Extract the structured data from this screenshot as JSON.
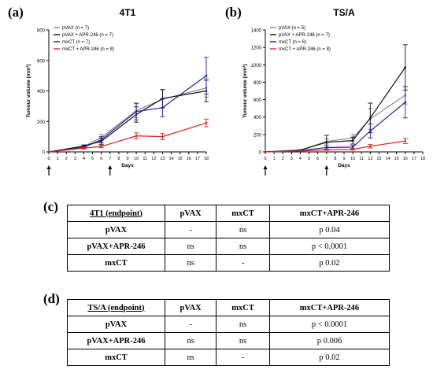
{
  "panels": {
    "a": "(a)",
    "b": "(b)",
    "c": "(c)",
    "d": "(d)"
  },
  "chart_data": [
    {
      "type": "line",
      "title": "4T1",
      "xlabel": "Days",
      "ylabel": "Tumour volume (mm³)",
      "xlim": [
        0,
        18
      ],
      "ylim": [
        0,
        800
      ],
      "xticks": [
        0,
        1,
        2,
        3,
        4,
        5,
        6,
        7,
        8,
        9,
        10,
        11,
        12,
        13,
        14,
        15,
        16,
        17,
        18
      ],
      "yticks": [
        0,
        200,
        400,
        600,
        800
      ],
      "arrows_at_days": [
        0,
        7
      ],
      "legend_position": "top-left",
      "series": [
        {
          "name": "pVAX (n = 7)",
          "color": "#888888",
          "x": [
            0,
            4,
            6,
            10,
            13,
            18
          ],
          "y": [
            0,
            35,
            95,
            270,
            345,
            420
          ],
          "err": [
            0,
            8,
            20,
            45,
            55,
            60
          ]
        },
        {
          "name": "pVAX + APR-246 (n = 7)",
          "color": "#111111",
          "x": [
            0,
            4,
            6,
            10,
            13,
            18
          ],
          "y": [
            0,
            38,
            70,
            245,
            350,
            400
          ],
          "err": [
            0,
            8,
            20,
            50,
            60,
            70
          ]
        },
        {
          "name": "mxCT (n = 7)",
          "color": "#1f1fa0",
          "x": [
            0,
            4,
            6,
            10,
            13,
            18
          ],
          "y": [
            0,
            30,
            80,
            265,
            290,
            500
          ],
          "err": [
            0,
            8,
            20,
            55,
            60,
            120
          ]
        },
        {
          "name": "mxCT + APR-246 (n = 8)",
          "color": "#e02020",
          "x": [
            0,
            4,
            6,
            10,
            13,
            18
          ],
          "y": [
            0,
            25,
            35,
            105,
            100,
            190
          ],
          "err": [
            0,
            6,
            8,
            20,
            20,
            25
          ]
        }
      ]
    },
    {
      "type": "line",
      "title": "TS/A",
      "xlabel": "Days",
      "ylabel": "Tumour volume (mm³)",
      "xlim": [
        0,
        18
      ],
      "ylim": [
        0,
        1400
      ],
      "xticks": [
        0,
        1,
        2,
        3,
        4,
        5,
        6,
        7,
        8,
        9,
        10,
        11,
        12,
        13,
        14,
        15,
        16,
        17,
        18
      ],
      "yticks": [
        0,
        200,
        400,
        600,
        800,
        1000,
        1200,
        1400
      ],
      "arrows_at_days": [
        0,
        7
      ],
      "legend_position": "top-left",
      "series": [
        {
          "name": "pVAX (n = 5)",
          "color": "#888888",
          "x": [
            0,
            4,
            7,
            10,
            12,
            16
          ],
          "y": [
            0,
            20,
            120,
            160,
            380,
            650
          ],
          "err": [
            0,
            5,
            30,
            40,
            120,
            100
          ]
        },
        {
          "name": "pVAX + APR-246 (n = 7)",
          "color": "#111111",
          "x": [
            0,
            4,
            7,
            10,
            12,
            16
          ],
          "y": [
            0,
            20,
            110,
            130,
            390,
            970
          ],
          "err": [
            0,
            5,
            80,
            40,
            170,
            260
          ]
        },
        {
          "name": "mxCT (n = 6)",
          "color": "#1f1fa0",
          "x": [
            0,
            4,
            7,
            10,
            12,
            16
          ],
          "y": [
            0,
            15,
            50,
            55,
            240,
            570
          ],
          "err": [
            0,
            5,
            20,
            20,
            80,
            180
          ]
        },
        {
          "name": "mxCT + APR-246 (n = 8)",
          "color": "#e02020",
          "x": [
            0,
            4,
            7,
            10,
            12,
            16
          ],
          "y": [
            0,
            10,
            25,
            30,
            65,
            125
          ],
          "err": [
            0,
            3,
            8,
            10,
            20,
            30
          ]
        }
      ]
    }
  ],
  "tables": [
    {
      "corner": "4T1 (endpoint)",
      "cols": [
        "pVAX",
        "mxCT",
        "mxCT+APR-246"
      ],
      "rows": [
        {
          "label": "pVAX",
          "cells": [
            "-",
            "ns",
            "p 0.04"
          ]
        },
        {
          "label": "pVAX+APR-246",
          "cells": [
            "ns",
            "ns",
            "p < 0.0001"
          ]
        },
        {
          "label": "mxCT",
          "cells": [
            "ns",
            "-",
            "p 0.02"
          ]
        }
      ]
    },
    {
      "corner": "TS/A (endpoint)",
      "cols": [
        "pVAX",
        "mxCT",
        "mxCT+APR-246"
      ],
      "rows": [
        {
          "label": "pVAX",
          "cells": [
            "-",
            "ns",
            "p < 0.0001"
          ]
        },
        {
          "label": "pVAX+APR-246",
          "cells": [
            "ns",
            "ns",
            "p 0.006"
          ]
        },
        {
          "label": "mxCT",
          "cells": [
            "ns",
            "-",
            "p 0.02"
          ]
        }
      ]
    }
  ]
}
